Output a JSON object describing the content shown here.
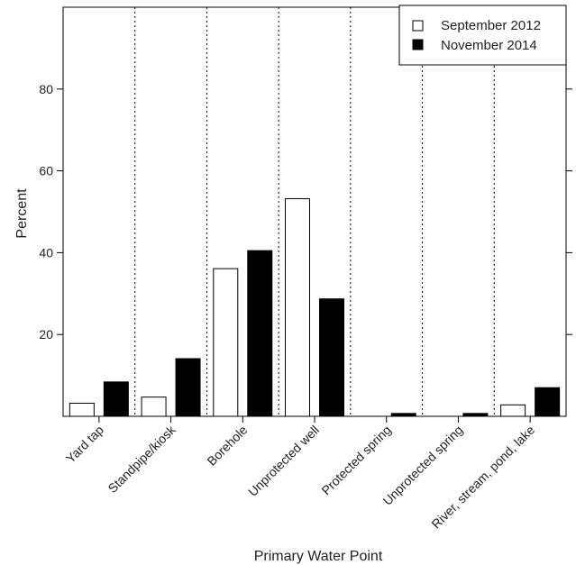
{
  "chart_data": {
    "type": "bar",
    "title": "",
    "xlabel": "Primary Water Point",
    "ylabel": "Percent",
    "ylim": [
      0,
      100
    ],
    "yticks": [
      20,
      40,
      60,
      80
    ],
    "categories": [
      "Yard tap",
      "Standpipe/kiosk",
      "Borehole",
      "Unprotected well",
      "Protected spring",
      "Unprotected spring",
      "River, stream, pond, lake"
    ],
    "series": [
      {
        "name": "September 2012",
        "color": "#ffffff",
        "values": [
          3.2,
          4.7,
          36.1,
          53.2,
          0,
          0,
          2.8
        ]
      },
      {
        "name": "November 2014",
        "color": "#000000",
        "values": [
          8.4,
          14.1,
          40.5,
          28.7,
          0.7,
          0.7,
          7.0
        ]
      }
    ],
    "legend_position": "top-right",
    "grid": "vertical dotted category separators"
  }
}
